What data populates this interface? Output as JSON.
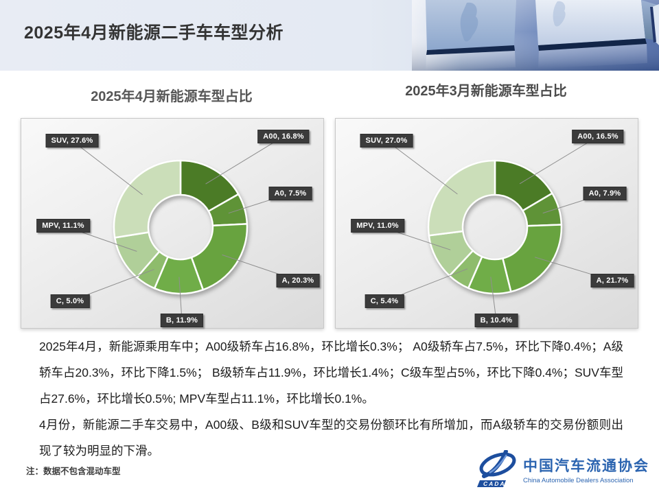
{
  "slide": {
    "title": "2025年4月新能源二手车车型分析",
    "note": "注：数据不包含混动车型",
    "paragraphs": [
      "2025年4月，新能源乘用车中；A00级轿车占16.8%，环比增长0.3%； A0级轿车占7.5%，环比下降0.4%；A级轿车占20.3%，环比下降1.5%； B级轿车占11.9%，环比增长1.4%；C级车型占5%，环比下降0.4%；SUV车型占27.6%，环比增长0.5%; MPV车型占11.1%，环比增长0.1%。",
      "4月份，新能源二手车交易中，A00级、B级和SUV车型的交易份额环比有所增加，而A级轿车的交易份额则出现了较为明显的下滑。"
    ],
    "logo": {
      "cn": "中国汽车流通协会",
      "en": "China Automobile Dealers Association",
      "badge": "CADA",
      "color": "#2b64b0"
    }
  },
  "chart_data": [
    {
      "type": "pie",
      "subtype": "donut",
      "title": "2025年4月新能源车型占比",
      "categories": [
        "A00",
        "A0",
        "A",
        "B",
        "C",
        "MPV",
        "SUV"
      ],
      "values": [
        16.8,
        7.5,
        20.3,
        11.9,
        5.0,
        11.1,
        27.6
      ],
      "labels": [
        "A00, 16.8%",
        "A0, 7.5%",
        "A, 20.3%",
        "B, 11.9%",
        "C, 5.0%",
        "MPV, 11.1%",
        "SUV, 27.6%"
      ],
      "colors": [
        "#4b7b26",
        "#5f9337",
        "#68a33f",
        "#70ad48",
        "#8ebc6c",
        "#b0cf99",
        "#cbdeb9"
      ],
      "hole": 0.48,
      "start_angle_deg": 0,
      "direction": "clockwise",
      "label_style": "outside-callout",
      "legend": "none"
    },
    {
      "type": "pie",
      "subtype": "donut",
      "title": "2025年3月新能源车型占比",
      "categories": [
        "A00",
        "A0",
        "A",
        "B",
        "C",
        "MPV",
        "SUV"
      ],
      "values": [
        16.5,
        7.9,
        21.7,
        10.4,
        5.4,
        11.0,
        27.0
      ],
      "labels": [
        "A00, 16.5%",
        "A0, 7.9%",
        "A, 21.7%",
        "B, 10.4%",
        "C, 5.4%",
        "MPV, 11.0%",
        "SUV, 27.0%"
      ],
      "colors": [
        "#4b7b26",
        "#5f9337",
        "#68a33f",
        "#70ad48",
        "#8ebc6c",
        "#b0cf99",
        "#cbdeb9"
      ],
      "hole": 0.48,
      "start_angle_deg": 0,
      "direction": "clockwise",
      "label_style": "outside-callout",
      "legend": "none"
    }
  ]
}
